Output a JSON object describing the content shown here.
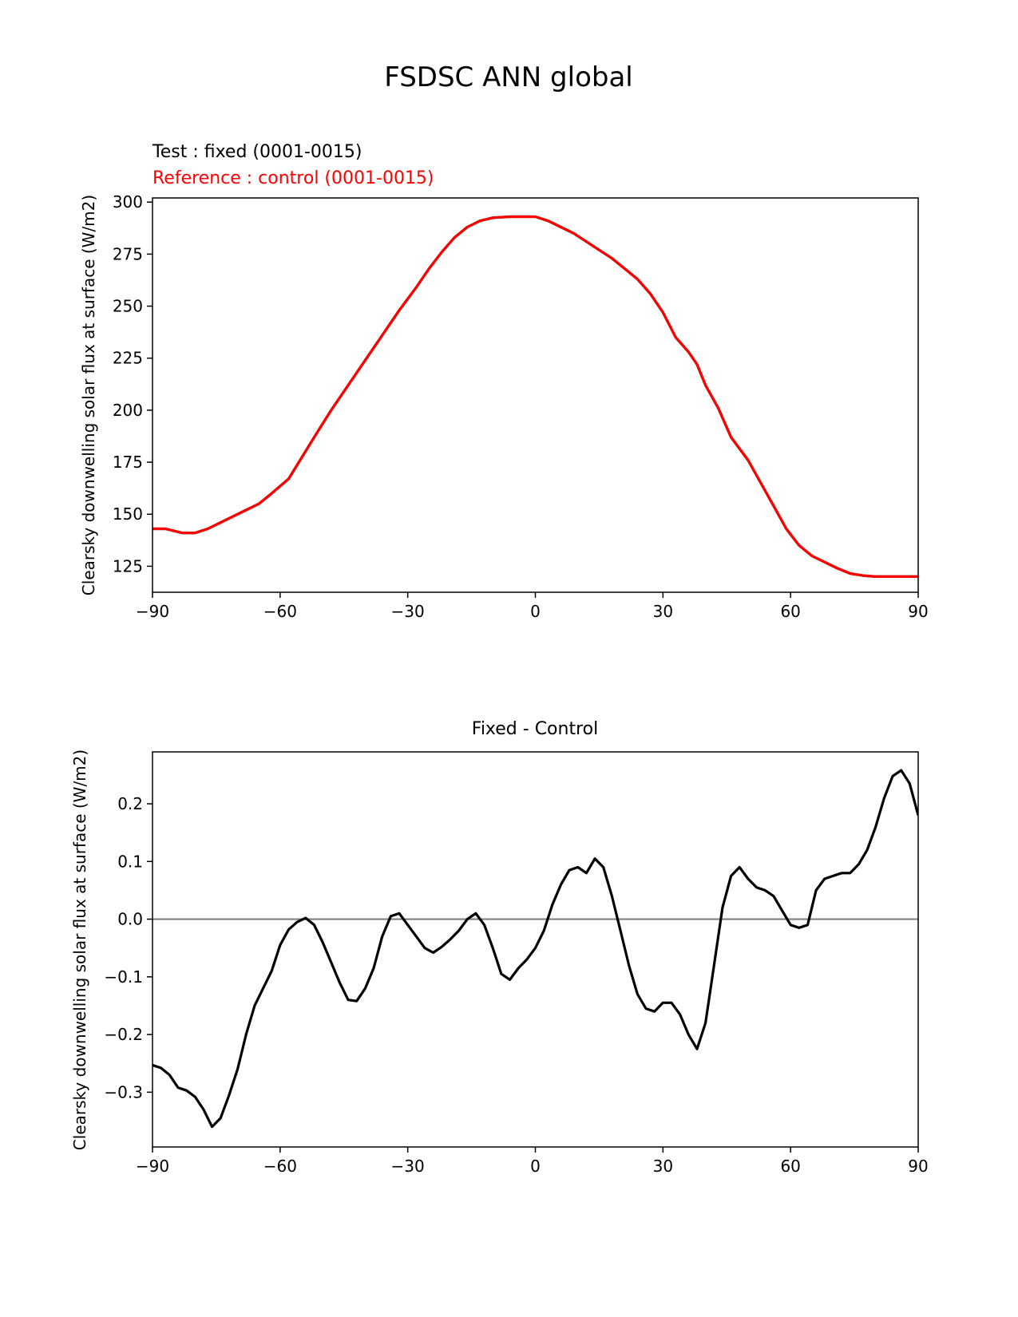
{
  "figure": {
    "title": "FSDSC ANN global"
  },
  "colors": {
    "test": "#000000",
    "reference": "#ff0000",
    "diff": "#000000",
    "zero_line": "#808080"
  },
  "chart_data": [
    {
      "type": "line",
      "legend": {
        "test": "Test : fixed (0001-0015)",
        "reference": "Reference : control (0001-0015)"
      },
      "ylabel": "Clearsky downwelling solar flux at surface (W/m2)",
      "xlim": [
        -90,
        90
      ],
      "ylim": [
        112.5,
        302
      ],
      "xticks": [
        -90,
        -60,
        -30,
        0,
        30,
        60,
        90
      ],
      "yticks": [
        125,
        150,
        175,
        200,
        225,
        250,
        275,
        300
      ],
      "xtick_labels": [
        "−90",
        "−60",
        "−30",
        "0",
        "30",
        "60",
        "90"
      ],
      "ytick_labels": [
        "125",
        "150",
        "175",
        "200",
        "225",
        "250",
        "275",
        "300"
      ],
      "series": [
        {
          "name": "Test : fixed (0001-0015)",
          "color": "#000000",
          "x": [
            -90,
            -87,
            -85,
            -83,
            -80,
            -77,
            -74,
            -71,
            -68,
            -65,
            -62,
            -58,
            -55,
            -52,
            -48,
            -44,
            -40,
            -36,
            -32,
            -28,
            -25,
            -22,
            -19,
            -16,
            -13,
            -10,
            -6,
            -3,
            0,
            3,
            6,
            9,
            12,
            15,
            18,
            21,
            24,
            27,
            30,
            33,
            36,
            38,
            40,
            43,
            46,
            50,
            53,
            56,
            59,
            62,
            65,
            68,
            71,
            74,
            77,
            80,
            83,
            86,
            90
          ],
          "y": [
            143,
            143,
            142,
            141,
            141,
            143,
            146,
            149,
            152,
            155,
            160,
            167,
            177,
            187,
            200,
            212,
            224,
            236,
            248,
            259,
            268,
            276,
            283,
            288,
            291,
            292.5,
            293,
            293,
            293,
            291,
            288,
            285,
            281,
            277,
            273,
            268,
            263,
            256,
            247,
            235,
            228,
            222,
            212,
            201,
            187,
            176,
            165,
            154,
            143,
            135,
            130,
            127,
            124,
            121.5,
            120.5,
            120,
            120,
            120,
            120
          ]
        },
        {
          "name": "Reference : control (0001-0015)",
          "color": "#ff0000",
          "x": [
            -90,
            -87,
            -85,
            -83,
            -80,
            -77,
            -74,
            -71,
            -68,
            -65,
            -62,
            -58,
            -55,
            -52,
            -48,
            -44,
            -40,
            -36,
            -32,
            -28,
            -25,
            -22,
            -19,
            -16,
            -13,
            -10,
            -6,
            -3,
            0,
            3,
            6,
            9,
            12,
            15,
            18,
            21,
            24,
            27,
            30,
            33,
            36,
            38,
            40,
            43,
            46,
            50,
            53,
            56,
            59,
            62,
            65,
            68,
            71,
            74,
            77,
            80,
            83,
            86,
            90
          ],
          "y": [
            143,
            143,
            142,
            141,
            141,
            143,
            146,
            149,
            152,
            155,
            160,
            167,
            177,
            187,
            200,
            212,
            224,
            236,
            248,
            259,
            268,
            276,
            283,
            288,
            291,
            292.5,
            293,
            293,
            293,
            291,
            288,
            285,
            281,
            277,
            273,
            268,
            263,
            256,
            247,
            235,
            228,
            222,
            212,
            201,
            187,
            176,
            165,
            154,
            143,
            135,
            130,
            127,
            124,
            121.5,
            120.5,
            120,
            120,
            120,
            120
          ]
        }
      ]
    },
    {
      "type": "line",
      "title": "Fixed - Control",
      "ylabel": "Clearsky downwelling solar flux at surface (W/m2)",
      "xlim": [
        -90,
        90
      ],
      "ylim": [
        -0.395,
        0.29
      ],
      "xticks": [
        -90,
        -60,
        -30,
        0,
        30,
        60,
        90
      ],
      "yticks": [
        -0.3,
        -0.2,
        -0.1,
        0.0,
        0.1,
        0.2
      ],
      "xtick_labels": [
        "−90",
        "−60",
        "−30",
        "0",
        "30",
        "60",
        "90"
      ],
      "ytick_labels": [
        "−0.3",
        "−0.2",
        "−0.1",
        "0.0",
        "0.1",
        "0.2"
      ],
      "hline": 0.0,
      "series": [
        {
          "color": "#000000",
          "x": [
            -90,
            -88,
            -86,
            -84,
            -82,
            -80,
            -78,
            -76,
            -74,
            -72,
            -70,
            -68,
            -66,
            -64,
            -62,
            -60,
            -58,
            -56,
            -54,
            -52,
            -50,
            -48,
            -46,
            -44,
            -42,
            -40,
            -38,
            -36,
            -34,
            -32,
            -30,
            -28,
            -26,
            -24,
            -22,
            -20,
            -18,
            -16,
            -14,
            -12,
            -10,
            -8,
            -6,
            -4,
            -2,
            0,
            2,
            4,
            6,
            8,
            10,
            12,
            14,
            16,
            18,
            20,
            22,
            24,
            26,
            28,
            30,
            32,
            34,
            36,
            38,
            40,
            42,
            44,
            46,
            48,
            50,
            52,
            54,
            56,
            58,
            60,
            62,
            64,
            66,
            68,
            70,
            72,
            74,
            76,
            78,
            80,
            82,
            84,
            86,
            88,
            90
          ],
          "y": [
            -0.253,
            -0.258,
            -0.27,
            -0.292,
            -0.297,
            -0.308,
            -0.33,
            -0.36,
            -0.345,
            -0.305,
            -0.26,
            -0.2,
            -0.15,
            -0.12,
            -0.09,
            -0.045,
            -0.018,
            -0.005,
            0.002,
            -0.01,
            -0.04,
            -0.075,
            -0.11,
            -0.14,
            -0.142,
            -0.12,
            -0.085,
            -0.03,
            0.005,
            0.01,
            -0.01,
            -0.03,
            -0.05,
            -0.058,
            -0.048,
            -0.035,
            -0.02,
            0.0,
            0.01,
            -0.01,
            -0.05,
            -0.095,
            -0.105,
            -0.085,
            -0.07,
            -0.05,
            -0.02,
            0.025,
            0.06,
            0.085,
            0.09,
            0.08,
            0.105,
            0.09,
            0.04,
            -0.02,
            -0.08,
            -0.13,
            -0.155,
            -0.16,
            -0.145,
            -0.145,
            -0.165,
            -0.2,
            -0.225,
            -0.18,
            -0.08,
            0.02,
            0.075,
            0.09,
            0.07,
            0.055,
            0.05,
            0.04,
            0.015,
            -0.01,
            -0.015,
            -0.01,
            0.05,
            0.07,
            0.075,
            0.08,
            0.08,
            0.095,
            0.12,
            0.16,
            0.21,
            0.248,
            0.258,
            0.235,
            0.18
          ]
        }
      ]
    }
  ]
}
